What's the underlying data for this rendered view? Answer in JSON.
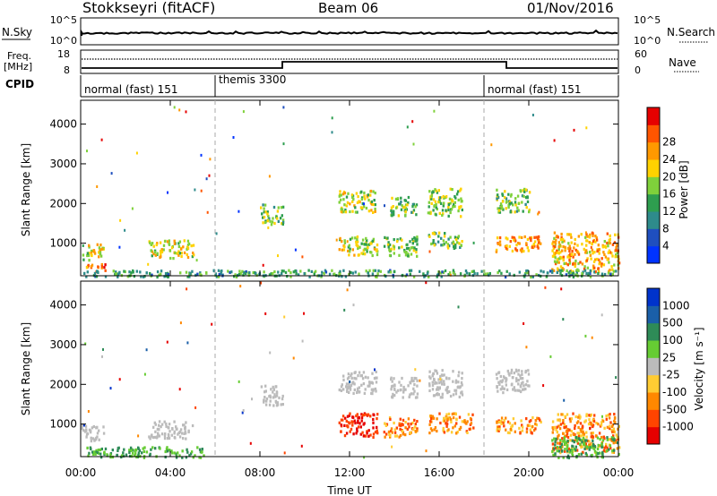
{
  "header": {
    "station": "Stokkseyri (fitACF)",
    "beam": "Beam 06",
    "date": "01/Nov/2016"
  },
  "noise_panel": {
    "left_label": "N.Sky",
    "left_ticks": [
      "10^5",
      "10^0"
    ],
    "right_label": "N.Search",
    "right_ticks": [
      "10^5",
      "10^0"
    ]
  },
  "freq_panel": {
    "left_label_1": "Freq.",
    "left_label_2": "[MHz]",
    "left_ticks": [
      "18",
      "8"
    ],
    "right_label": "Nave",
    "right_ticks": [
      "60",
      "0"
    ]
  },
  "cpid_panel": {
    "label": "CPID",
    "segments": [
      {
        "start_hour": 0,
        "text": "normal (fast) 151"
      },
      {
        "start_hour": 6,
        "text": "themis 3300"
      },
      {
        "start_hour": 18,
        "text": "normal (fast) 151"
      }
    ]
  },
  "chart_data": [
    {
      "type": "heatmap",
      "name": "power",
      "ylabel": "Slant Range [km]",
      "xlim": [
        0,
        24
      ],
      "ylim": [
        180,
        4600
      ],
      "yticks": [
        "1000",
        "2000",
        "3000",
        "4000"
      ],
      "colorbar": {
        "label": "Power [dB]",
        "ticks": [
          "4",
          "8",
          "12",
          "16",
          "20",
          "24",
          "28"
        ],
        "colors": [
          "#0033ff",
          "#1f4fbf",
          "#2e8b8b",
          "#2e9e4f",
          "#7fd13b",
          "#ffd200",
          "#ff9900",
          "#ff5500",
          "#e60000"
        ]
      },
      "echo_regions": [
        {
          "t": [
            0.0,
            1.0
          ],
          "r": [
            600,
            1000
          ],
          "level": 0.6
        },
        {
          "t": [
            0.2,
            1.2
          ],
          "r": [
            300,
            500
          ],
          "level": 0.85
        },
        {
          "t": [
            3.0,
            5.0
          ],
          "r": [
            650,
            1100
          ],
          "level": 0.6
        },
        {
          "t": [
            8.0,
            9.0
          ],
          "r": [
            1500,
            2000
          ],
          "level": 0.45
        },
        {
          "t": [
            11.5,
            13.2
          ],
          "r": [
            1800,
            2350
          ],
          "level": 0.55
        },
        {
          "t": [
            11.5,
            13.2
          ],
          "r": [
            700,
            1200
          ],
          "level": 0.55
        },
        {
          "t": [
            13.5,
            15.0
          ],
          "r": [
            700,
            1200
          ],
          "level": 0.5
        },
        {
          "t": [
            13.8,
            15.0
          ],
          "r": [
            1700,
            2200
          ],
          "level": 0.45
        },
        {
          "t": [
            15.5,
            17.0
          ],
          "r": [
            1700,
            2400
          ],
          "level": 0.5
        },
        {
          "t": [
            15.5,
            17.0
          ],
          "r": [
            900,
            1300
          ],
          "level": 0.45
        },
        {
          "t": [
            18.5,
            20.5
          ],
          "r": [
            800,
            1200
          ],
          "level": 0.75
        },
        {
          "t": [
            18.5,
            20.0
          ],
          "r": [
            1800,
            2400
          ],
          "level": 0.45
        },
        {
          "t": [
            21.0,
            24.0
          ],
          "r": [
            300,
            1300
          ],
          "level": 0.7
        },
        {
          "t": [
            0.0,
            24.0
          ],
          "r": [
            180,
            350
          ],
          "level": 0.35
        }
      ]
    },
    {
      "type": "heatmap",
      "name": "velocity",
      "xlabel": "Time UT",
      "ylabel": "Slant Range [km]",
      "xlim": [
        0,
        24
      ],
      "ylim": [
        180,
        4600
      ],
      "xticks": [
        "00:00",
        "04:00",
        "08:00",
        "12:00",
        "16:00",
        "20:00",
        "00:00"
      ],
      "yticks": [
        "1000",
        "2000",
        "3000",
        "4000"
      ],
      "colorbar": {
        "label": "Velocity [m s⁻¹]",
        "ticks": [
          "1000",
          "500",
          "100",
          "25",
          "-25",
          "-100",
          "-500",
          "-1000"
        ],
        "colors": [
          "#0033cc",
          "#1a5fa8",
          "#2e8b57",
          "#66cc33",
          "#bbbbbb",
          "#ffcc33",
          "#ff8800",
          "#ff4400",
          "#e60000"
        ]
      },
      "echo_regions": [
        {
          "t": [
            0.0,
            1.0
          ],
          "r": [
            600,
            1000
          ],
          "v": "gray"
        },
        {
          "t": [
            0.2,
            5.5
          ],
          "r": [
            180,
            450
          ],
          "v": "green"
        },
        {
          "t": [
            3.0,
            5.0
          ],
          "r": [
            650,
            1100
          ],
          "v": "gray"
        },
        {
          "t": [
            8.0,
            9.0
          ],
          "r": [
            1500,
            2000
          ],
          "v": "gray"
        },
        {
          "t": [
            11.5,
            13.2
          ],
          "r": [
            1800,
            2350
          ],
          "v": "gray"
        },
        {
          "t": [
            11.5,
            13.2
          ],
          "r": [
            700,
            1300
          ],
          "v": "red"
        },
        {
          "t": [
            13.5,
            15.0
          ],
          "r": [
            700,
            1200
          ],
          "v": "orange"
        },
        {
          "t": [
            13.8,
            15.0
          ],
          "r": [
            1700,
            2200
          ],
          "v": "gray"
        },
        {
          "t": [
            15.5,
            17.5
          ],
          "r": [
            800,
            1300
          ],
          "v": "orange"
        },
        {
          "t": [
            15.5,
            17.0
          ],
          "r": [
            1700,
            2400
          ],
          "v": "gray"
        },
        {
          "t": [
            18.5,
            20.5
          ],
          "r": [
            800,
            1200
          ],
          "v": "orange"
        },
        {
          "t": [
            18.5,
            20.0
          ],
          "r": [
            1800,
            2400
          ],
          "v": "gray"
        },
        {
          "t": [
            21.0,
            24.0
          ],
          "r": [
            300,
            1300
          ],
          "v": "orange"
        },
        {
          "t": [
            21.0,
            24.0
          ],
          "r": [
            180,
            700
          ],
          "v": "green"
        }
      ]
    }
  ]
}
